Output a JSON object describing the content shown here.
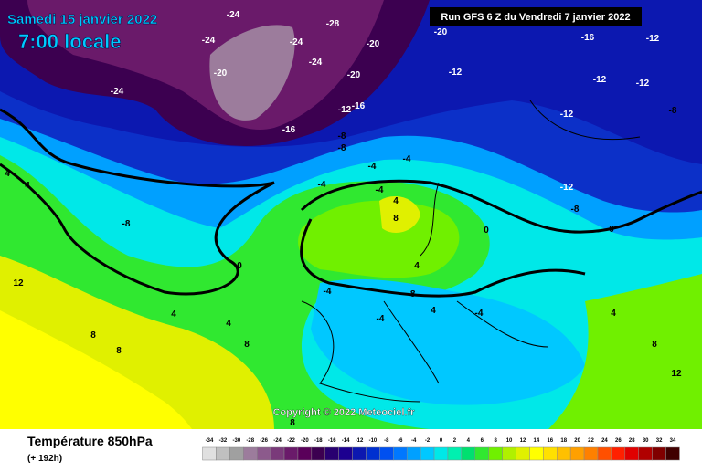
{
  "header": {
    "date": "Samedi 15 janvier 2022",
    "time": "7:00 locale",
    "run": "Run GFS 6 Z du Vendredi 7 janvier 2022"
  },
  "map": {
    "copyright": "Copyright © 2022 Meteociel.fr",
    "labels": [
      -24,
      -24,
      -20,
      -24,
      -28,
      -24,
      -24,
      -20,
      -20,
      -16,
      -12,
      -16,
      -8,
      -8,
      -12,
      -20,
      -16,
      -12,
      -12,
      -12,
      -12,
      -8,
      -12,
      -8,
      -8,
      -4,
      -4,
      -4,
      4,
      8,
      0,
      0,
      0,
      4,
      -4,
      -4,
      -8,
      4,
      -4,
      4,
      4,
      12,
      8,
      8,
      4,
      4,
      8,
      12,
      8,
      4,
      8,
      -4
    ]
  },
  "footer": {
    "title": "Température 850hPa",
    "lead": "(+ 192h)"
  },
  "scale": {
    "values": [
      -34,
      -32,
      -30,
      -28,
      -26,
      -24,
      -22,
      -20,
      -18,
      -16,
      -14,
      -12,
      -10,
      -8,
      -6,
      -4,
      -2,
      0,
      2,
      4,
      6,
      8,
      10,
      12,
      14,
      16,
      18,
      20,
      22,
      24,
      26,
      28,
      30,
      32,
      34
    ],
    "colors": [
      "#e0e0e0",
      "#c0c0c0",
      "#a0a0a0",
      "#9c7c9c",
      "#8c5a8c",
      "#7a3a7a",
      "#6a1a6a",
      "#5a005a",
      "#3c0050",
      "#280070",
      "#1c0090",
      "#0c18b0",
      "#0030d0",
      "#0050f0",
      "#0078ff",
      "#00a0ff",
      "#00c8ff",
      "#00e8e8",
      "#00f0b0",
      "#00e070",
      "#30e830",
      "#70f000",
      "#b0f000",
      "#e0f000",
      "#ffff00",
      "#ffe000",
      "#ffc000",
      "#ffa000",
      "#ff8000",
      "#ff5000",
      "#ff2000",
      "#e00000",
      "#b00000",
      "#800000",
      "#400000"
    ]
  }
}
